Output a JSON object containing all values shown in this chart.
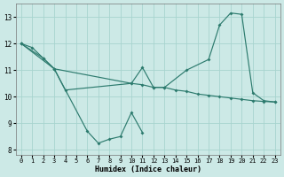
{
  "xlabel": "Humidex (Indice chaleur)",
  "bg_color": "#cce9e6",
  "line_color": "#2d7b6e",
  "grid_color": "#a8d4cf",
  "xlim": [
    -0.5,
    23.5
  ],
  "ylim": [
    7.8,
    13.5
  ],
  "xticks": [
    0,
    1,
    2,
    3,
    4,
    5,
    6,
    7,
    8,
    9,
    10,
    11,
    12,
    13,
    14,
    15,
    16,
    17,
    18,
    19,
    20,
    21,
    22,
    23
  ],
  "yticks": [
    8,
    9,
    10,
    11,
    12,
    13
  ],
  "line1_x": [
    0,
    1,
    2,
    3,
    4,
    10,
    11,
    12,
    13,
    15,
    17,
    18,
    19,
    20,
    21,
    22,
    23
  ],
  "line1_y": [
    12.0,
    11.85,
    11.45,
    11.05,
    10.25,
    10.5,
    11.1,
    10.35,
    10.35,
    11.0,
    11.4,
    12.7,
    13.15,
    13.1,
    10.15,
    9.85,
    9.8
  ],
  "line2_x": [
    0,
    2,
    3,
    6,
    7,
    8,
    9,
    10,
    11
  ],
  "line2_y": [
    12.0,
    11.45,
    11.05,
    8.7,
    8.25,
    8.4,
    8.5,
    9.4,
    8.65
  ],
  "line3_x": [
    0,
    3,
    10,
    11,
    12,
    13,
    14,
    15,
    16,
    17,
    18,
    19,
    20,
    21,
    22,
    23
  ],
  "line3_y": [
    12.0,
    11.05,
    10.5,
    10.45,
    10.35,
    10.35,
    10.25,
    10.2,
    10.1,
    10.05,
    10.0,
    9.95,
    9.9,
    9.85,
    9.82,
    9.8
  ]
}
